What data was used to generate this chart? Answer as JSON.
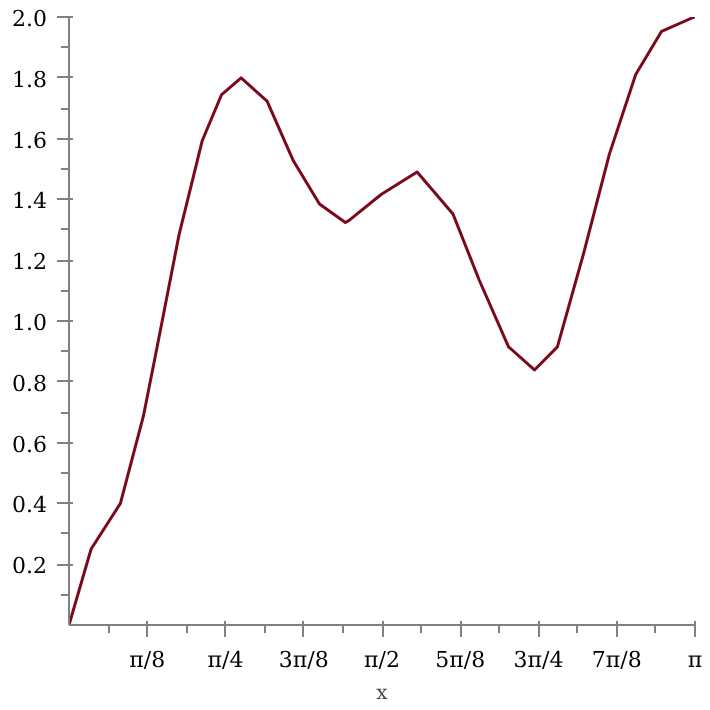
{
  "chart_data": {
    "type": "line",
    "xlabel": "x",
    "color": "#7a0a1a",
    "xlim": [
      0,
      3.1416
    ],
    "ylim": [
      0,
      2.0
    ],
    "x": [
      0,
      0.111,
      0.258,
      0.373,
      0.439,
      0.553,
      0.668,
      0.766,
      0.864,
      0.994,
      1.126,
      1.257,
      1.387,
      1.404,
      1.568,
      1.747,
      1.927,
      2.059,
      2.206,
      2.336,
      2.451,
      2.582,
      2.712,
      2.844,
      2.974,
      3.138,
      3.1416
    ],
    "values": [
      0,
      0.25,
      0.4,
      0.686,
      0.904,
      1.286,
      1.592,
      1.745,
      1.8,
      1.723,
      1.527,
      1.385,
      1.324,
      1.33,
      1.417,
      1.49,
      1.352,
      1.134,
      0.915,
      0.839,
      0.915,
      1.221,
      1.549,
      1.811,
      1.953,
      2.0,
      2.0
    ],
    "xticks": [
      {
        "value": 0.3927,
        "label": "π/8"
      },
      {
        "value": 0.7854,
        "label": "π/4"
      },
      {
        "value": 1.1781,
        "label": "3π/8"
      },
      {
        "value": 1.5708,
        "label": "π/2"
      },
      {
        "value": 1.9635,
        "label": "5π/8"
      },
      {
        "value": 2.3562,
        "label": "3π/4"
      },
      {
        "value": 2.7489,
        "label": "7π/8"
      },
      {
        "value": 3.1416,
        "label": "π"
      }
    ],
    "yticks": [
      0.2,
      0.4,
      0.6,
      0.8,
      {
        "value": 1,
        "label": "1.0"
      },
      1.2,
      1.4,
      1.6,
      1.8,
      {
        "value": 2,
        "label": "2.0"
      }
    ],
    "grid": false,
    "marker": "none",
    "line_style": "solid"
  }
}
